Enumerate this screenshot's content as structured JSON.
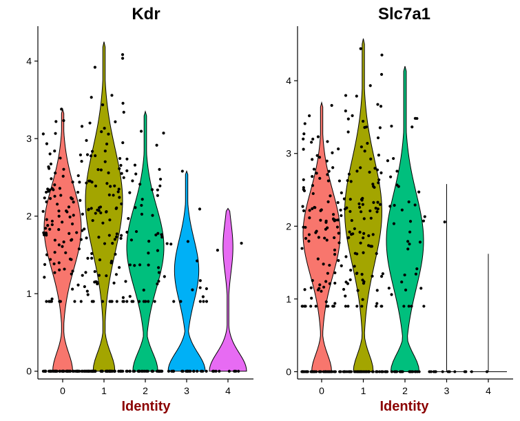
{
  "chart_data": [
    {
      "type": "violin",
      "title": "Kdr",
      "xlabel": "Identity",
      "ylabel": "",
      "categories": [
        "0",
        "1",
        "2",
        "3",
        "4"
      ],
      "ylim": [
        -0.1,
        4.45
      ],
      "yticks": [
        0,
        1,
        2,
        3,
        4
      ],
      "xlabel_color": "#8B0000",
      "colors": [
        "#F8766D",
        "#A3A500",
        "#00BF7D",
        "#00B0F6",
        "#E76BF3"
      ],
      "max_values": [
        3.38,
        4.25,
        3.35,
        2.58,
        2.1
      ],
      "zero_fraction": [
        0.3,
        0.32,
        0.35,
        0.55,
        0.75
      ],
      "mode_values": [
        1.85,
        2.2,
        1.6,
        1.3,
        1.6
      ],
      "points_per_group": [
        150,
        150,
        80,
        35,
        10
      ]
    },
    {
      "type": "violin",
      "title": "Slc7a1",
      "xlabel": "Identity",
      "ylabel": "",
      "categories": [
        "0",
        "1",
        "2",
        "3",
        "4"
      ],
      "ylim": [
        -0.1,
        4.75
      ],
      "yticks": [
        0,
        1,
        2,
        3,
        4
      ],
      "xlabel_color": "#8B0000",
      "colors": [
        "#F8766D",
        "#A3A500",
        "#00BF7D",
        "#00B0F6",
        "#E76BF3"
      ],
      "max_values": [
        3.7,
        4.58,
        4.2,
        2.58,
        1.62
      ],
      "zero_fraction": [
        0.3,
        0.3,
        0.38,
        0.9,
        0.95
      ],
      "mode_values": [
        1.9,
        2.2,
        1.8,
        1.5,
        1.62
      ],
      "points_per_group": [
        150,
        150,
        60,
        12,
        2
      ]
    }
  ]
}
